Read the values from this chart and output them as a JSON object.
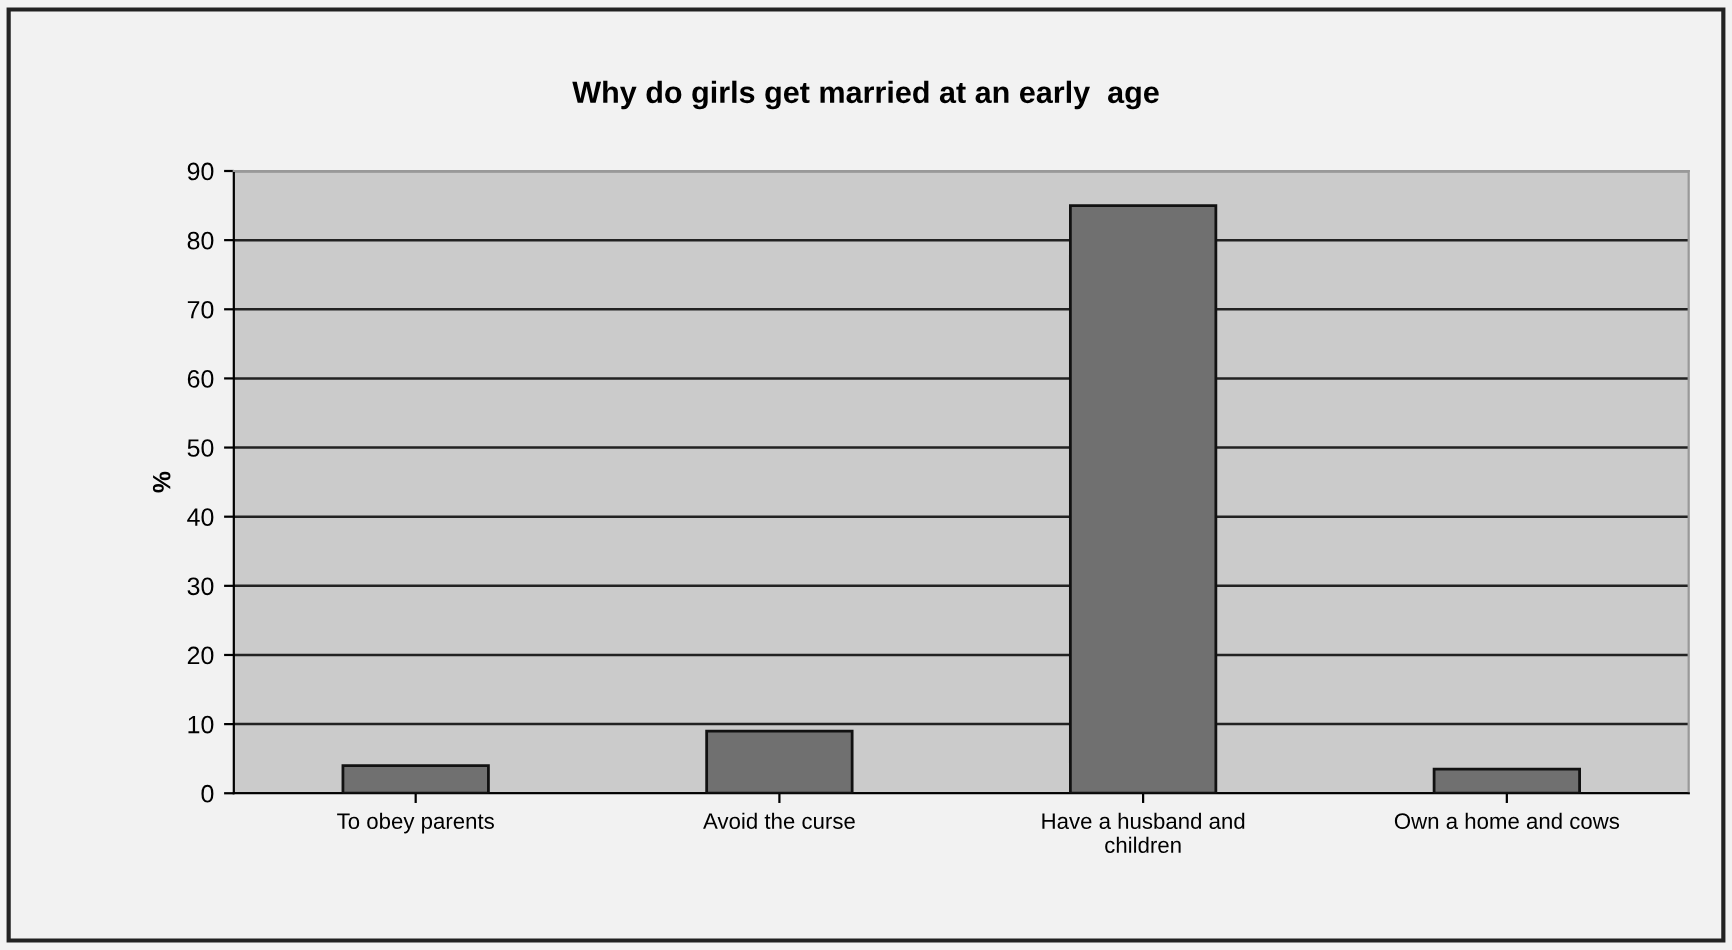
{
  "chart_data": {
    "type": "bar",
    "title": "Why do girls get married at an early  age",
    "ylabel": "%",
    "categories": [
      "To obey parents",
      "Avoid the curse",
      "Have a husband and\nchildren",
      "Own a home and cows"
    ],
    "values": [
      4,
      9,
      85,
      3.5
    ],
    "color": "#707070",
    "ylim": [
      0,
      90
    ],
    "yticks": [
      0,
      10,
      20,
      30,
      40,
      50,
      60,
      70,
      80,
      90
    ],
    "grid": "y"
  }
}
